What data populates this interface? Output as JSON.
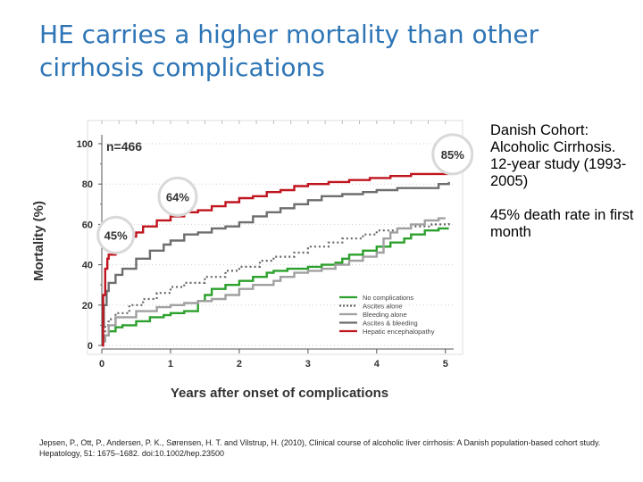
{
  "slide": {
    "title": "HE carries a higher mortality than other cirrhosis complications",
    "notes": [
      "Danish Cohort: Alcoholic Cirrhosis. 12-year study (1993-2005)",
      "45% death rate in first month"
    ],
    "citation": "Jepsen, P., Ott, P., Andersen, P. K., Sørensen, H. T. and Vilstrup, H. (2010), Clinical course of alcoholic liver cirrhosis: A Danish population-based cohort study. Hepatology, 51: 1675–1682. doi:10.1002/hep.23500"
  },
  "chart_data": {
    "type": "line",
    "title": "",
    "xlabel": "Years after onset of complications",
    "ylabel": "Mortality (%)",
    "xlim": [
      0,
      5
    ],
    "ylim": [
      0,
      100
    ],
    "xticks": [
      "0",
      "1",
      "2",
      "3",
      "4",
      "5"
    ],
    "yticks": [
      "0",
      "20",
      "40",
      "60",
      "80",
      "100"
    ],
    "annotation": "n=466",
    "callouts": [
      "45%",
      "64%",
      "85%"
    ],
    "legend": [
      "No complications",
      "Ascites alone",
      "Bleeding alone",
      "Ascites & bleeding",
      "Hepatic encephalopathy"
    ],
    "colors": {
      "no_complications": "#2ca02c",
      "ascites_alone": "#666666",
      "bleeding_alone": "#a0a0a0",
      "ascites_bleeding": "#6e6e6e",
      "hepatic_encephalopathy": "#c0141e"
    },
    "series": [
      {
        "name": "No complications",
        "style": "solid",
        "x": [
          0,
          0.05,
          0.1,
          0.2,
          0.3,
          0.5,
          0.7,
          0.9,
          1.0,
          1.2,
          1.4,
          1.5,
          1.6,
          1.8,
          2.0,
          2.2,
          2.4,
          2.5,
          2.7,
          3.0,
          3.2,
          3.4,
          3.5,
          3.6,
          3.8,
          4.0,
          4.2,
          4.4,
          4.5,
          4.7,
          4.9,
          5.05
        ],
        "values": [
          3,
          5,
          7,
          9,
          10,
          12,
          14,
          15,
          16,
          17,
          22,
          25,
          28,
          30,
          32,
          34,
          36,
          37,
          38,
          39,
          40,
          41,
          43,
          45,
          47,
          49,
          51,
          53,
          55,
          57,
          58,
          58
        ]
      },
      {
        "name": "Ascites alone",
        "style": "dotted",
        "x": [
          0,
          0.05,
          0.1,
          0.2,
          0.4,
          0.6,
          0.8,
          1.0,
          1.2,
          1.5,
          1.8,
          2.0,
          2.3,
          2.5,
          2.8,
          3.0,
          3.3,
          3.5,
          3.8,
          4.0,
          4.3,
          4.5,
          4.8,
          5.05
        ],
        "values": [
          6,
          10,
          13,
          16,
          20,
          23,
          26,
          29,
          31,
          34,
          37,
          39,
          42,
          44,
          46,
          49,
          51,
          53,
          55,
          57,
          58,
          59,
          60,
          61
        ]
      },
      {
        "name": "Bleeding alone",
        "style": "solid",
        "x": [
          0,
          0.05,
          0.1,
          0.2,
          0.5,
          0.8,
          1.0,
          1.2,
          1.4,
          1.6,
          1.8,
          2.0,
          2.2,
          2.4,
          2.5,
          2.6,
          2.8,
          3.0,
          3.2,
          3.4,
          3.6,
          3.8,
          4.0,
          4.1,
          4.2,
          4.3,
          4.5,
          4.7,
          4.9,
          5.0
        ],
        "values": [
          2,
          5,
          10,
          14,
          17,
          19,
          20,
          21,
          22,
          23,
          25,
          28,
          30,
          30,
          32,
          34,
          36,
          37,
          38,
          40,
          42,
          44,
          46,
          53,
          56,
          58,
          60,
          62,
          63,
          63
        ]
      },
      {
        "name": "Ascites & bleeding",
        "style": "solid",
        "x": [
          0,
          0.03,
          0.07,
          0.1,
          0.2,
          0.3,
          0.5,
          0.7,
          0.9,
          1.0,
          1.2,
          1.4,
          1.6,
          1.8,
          2.0,
          2.2,
          2.4,
          2.6,
          2.8,
          3.0,
          3.2,
          3.5,
          3.8,
          4.0,
          4.3,
          4.6,
          4.9,
          5.05
        ],
        "values": [
          10,
          20,
          27,
          31,
          35,
          38,
          43,
          47,
          50,
          52,
          55,
          56,
          58,
          59,
          61,
          64,
          66,
          68,
          70,
          72,
          74,
          75,
          76,
          77,
          78,
          78,
          80,
          81
        ]
      },
      {
        "name": "Hepatic encephalopathy",
        "style": "solid",
        "x": [
          0,
          0.02,
          0.05,
          0.08,
          0.1,
          0.2,
          0.3,
          0.4,
          0.5,
          0.6,
          0.8,
          1.0,
          1.2,
          1.4,
          1.6,
          1.8,
          2.0,
          2.2,
          2.4,
          2.6,
          2.8,
          3.0,
          3.3,
          3.6,
          3.9,
          4.2,
          4.5,
          4.8,
          5.05
        ],
        "values": [
          0,
          25,
          38,
          43,
          45,
          49,
          52,
          54,
          56,
          59,
          62,
          64,
          66,
          67,
          69,
          71,
          73,
          74,
          76,
          77,
          79,
          80,
          81,
          82,
          83,
          84,
          85,
          85,
          85
        ]
      }
    ]
  }
}
